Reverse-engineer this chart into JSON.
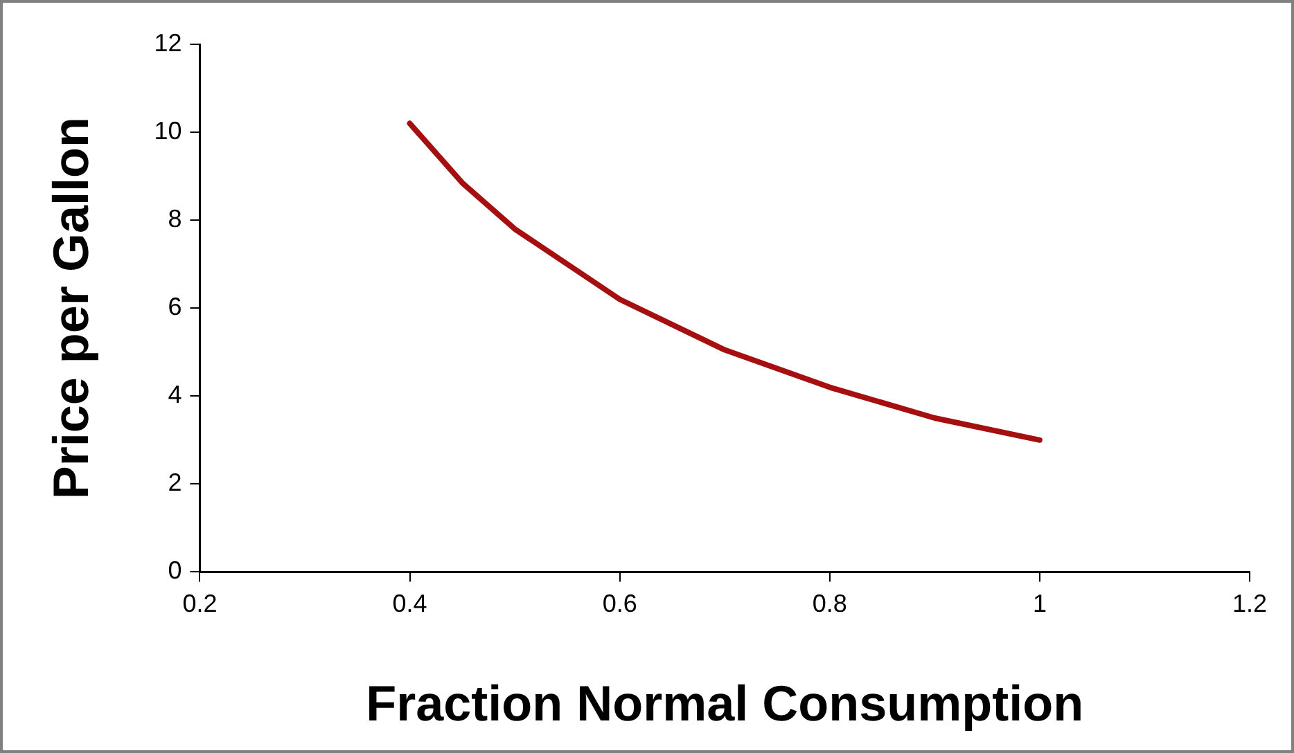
{
  "chart_data": {
    "type": "line",
    "xlabel": "Fraction Normal Consumption",
    "ylabel": "Price per Gallon",
    "x": [
      0.4,
      0.45,
      0.5,
      0.6,
      0.7,
      0.8,
      0.9,
      1.0
    ],
    "series": [
      {
        "color": "#a50f0f",
        "values": [
          10.2,
          8.85,
          7.8,
          6.2,
          5.05,
          4.2,
          3.5,
          3.0
        ]
      }
    ],
    "xlim": [
      0.2,
      1.2
    ],
    "xticks": [
      0.2,
      0.4,
      0.6,
      0.8,
      1,
      1.2
    ],
    "ylim": [
      0,
      12
    ],
    "yticks": [
      0,
      2,
      4,
      6,
      8,
      10,
      12
    ],
    "grid": false,
    "legend": false,
    "marker": "none",
    "line_style": "solid"
  }
}
